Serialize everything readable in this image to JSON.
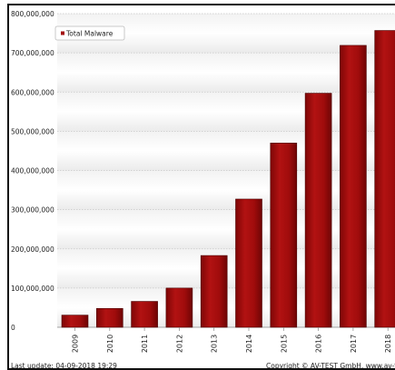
{
  "chart_data": {
    "type": "bar",
    "categories": [
      "2009",
      "2010",
      "2011",
      "2012",
      "2013",
      "2014",
      "2015",
      "2016",
      "2017",
      "2018"
    ],
    "series": [
      {
        "name": "Total Malware",
        "values": [
          31000000,
          48000000,
          66000000,
          100000000,
          183000000,
          327000000,
          470000000,
          597000000,
          719000000,
          757000000
        ]
      }
    ],
    "y_ticks": [
      "0",
      "100,000,000",
      "200,000,000",
      "300,000,000",
      "400,000,000",
      "500,000,000",
      "600,000,000",
      "700,000,000",
      "800,000,000"
    ],
    "ylim": [
      0,
      800000000
    ],
    "legend_position": "top-left",
    "bar_color": "#a30d0d",
    "grid": true
  },
  "footer": {
    "last_update": "Last update: 04-09-2018 19:29",
    "copyright": "Copyright © AV-TEST GmbH, www.av-test.org"
  }
}
